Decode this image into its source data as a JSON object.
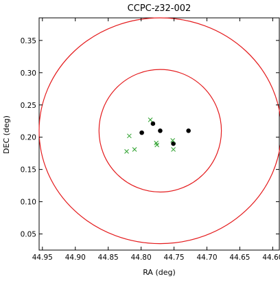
{
  "chart_data": {
    "type": "scatter",
    "title": "CCPC-z32-002",
    "xlabel": "RA (deg)",
    "ylabel": "DEC (deg)",
    "xlim": [
      44.955,
      44.59
    ],
    "ylim": [
      0.025,
      0.385
    ],
    "x_inverted": true,
    "xticks": [
      44.95,
      44.9,
      44.85,
      44.8,
      44.75,
      44.7,
      44.65,
      44.6
    ],
    "xtick_labels": [
      "44.95",
      "44.90",
      "44.85",
      "44.80",
      "44.75",
      "44.70",
      "44.65",
      "44.60"
    ],
    "yticks": [
      0.05,
      0.1,
      0.15,
      0.2,
      0.25,
      0.3,
      0.35
    ],
    "ytick_labels": [
      "0.05",
      "0.10",
      "0.15",
      "0.20",
      "0.25",
      "0.30",
      "0.35"
    ],
    "grid": false,
    "circles": [
      {
        "center_x": 44.771,
        "center_y": 0.21,
        "r_x": 0.184,
        "r_y": 0.175,
        "color": "#e41a1c"
      },
      {
        "center_x": 44.771,
        "center_y": 0.21,
        "r_x": 0.093,
        "r_y": 0.095,
        "color": "#e41a1c"
      }
    ],
    "series": [
      {
        "marker": "circle",
        "color": "#000000",
        "points": [
          {
            "x": 44.799,
            "y": 0.207
          },
          {
            "x": 44.782,
            "y": 0.221
          },
          {
            "x": 44.771,
            "y": 0.21
          },
          {
            "x": 44.751,
            "y": 0.19
          },
          {
            "x": 44.728,
            "y": 0.21
          }
        ]
      },
      {
        "marker": "x",
        "color": "#2ca02c",
        "points": [
          {
            "x": 44.822,
            "y": 0.178
          },
          {
            "x": 44.818,
            "y": 0.202
          },
          {
            "x": 44.81,
            "y": 0.181
          },
          {
            "x": 44.786,
            "y": 0.227
          },
          {
            "x": 44.777,
            "y": 0.191
          },
          {
            "x": 44.776,
            "y": 0.188
          },
          {
            "x": 44.752,
            "y": 0.195
          },
          {
            "x": 44.751,
            "y": 0.181
          }
        ]
      }
    ]
  }
}
